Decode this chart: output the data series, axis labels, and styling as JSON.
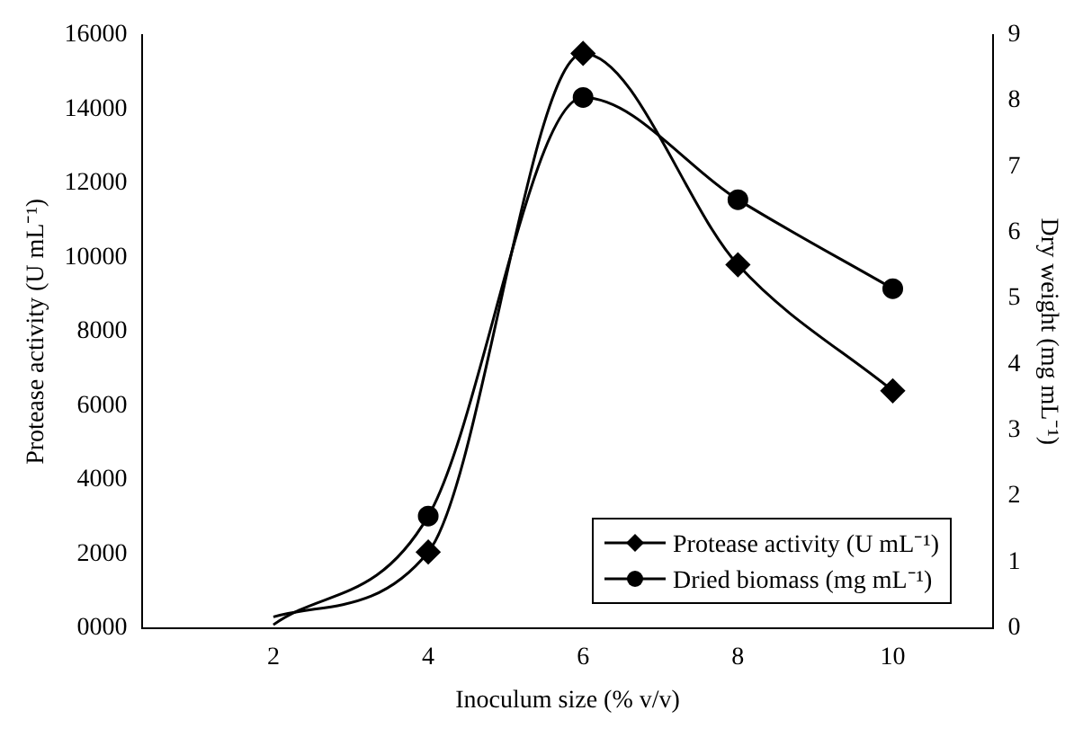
{
  "chart_data": {
    "type": "line",
    "xlabel": "Inoculum size (% v/v)",
    "ylabel": "Protease activity (U mL⁻¹)",
    "y2label": "Dry weight (mg mL⁻¹)",
    "x": [
      2,
      4,
      6,
      8,
      10
    ],
    "series": [
      {
        "name": "Protease activity (U mL⁻¹)",
        "color": "#000000",
        "marker": "diamond",
        "values": [
          300,
          2050,
          15500,
          9800,
          6400
        ]
      },
      {
        "name": "Dried biomass (mg mL⁻¹)",
        "color": "#000000",
        "marker": "circle",
        "axis": "y2",
        "values": [
          0.05,
          1.7,
          8.05,
          6.5,
          5.15
        ]
      }
    ],
    "xlim": [
      0.3,
      11.3
    ],
    "xticks": [
      2,
      4,
      6,
      8,
      10
    ],
    "ylim": [
      0,
      16000
    ],
    "yticks": [
      {
        "value": 0,
        "label": "0000"
      },
      2000,
      4000,
      6000,
      8000,
      10000,
      12000,
      14000,
      16000
    ],
    "y2lim": [
      0,
      9
    ],
    "y2ticks": [
      0,
      1,
      2,
      3,
      4,
      5,
      6,
      7,
      8,
      9
    ],
    "grid": false,
    "legend": "bottom right"
  }
}
